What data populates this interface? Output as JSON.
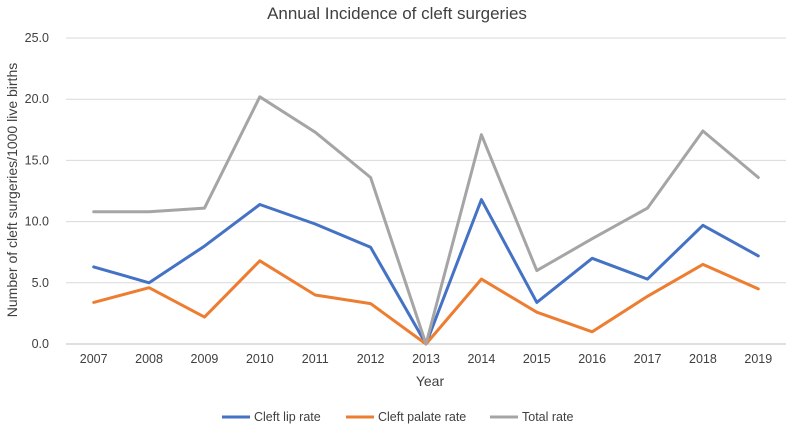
{
  "chart_data": {
    "type": "line",
    "title": "Annual Incidence of cleft surgeries",
    "xlabel": "Year",
    "ylabel": "Number of cleft surgeries/1000 live births",
    "categories": [
      "2007",
      "2008",
      "2009",
      "2010",
      "2011",
      "2012",
      "2013",
      "2014",
      "2015",
      "2016",
      "2017",
      "2018",
      "2019"
    ],
    "ylim": [
      0,
      25
    ],
    "yticks": [
      "0.0",
      "5.0",
      "10.0",
      "15.0",
      "20.0",
      "25.0"
    ],
    "grid": true,
    "legend_position": "bottom",
    "series": [
      {
        "name": "Cleft lip rate",
        "color": "#4472C4",
        "values": [
          6.3,
          5.0,
          8.0,
          11.4,
          9.8,
          7.9,
          0.0,
          11.8,
          3.4,
          7.0,
          5.3,
          9.7,
          7.2
        ]
      },
      {
        "name": "Cleft palate rate",
        "color": "#ED7D31",
        "values": [
          3.4,
          4.6,
          2.2,
          6.8,
          4.0,
          3.3,
          0.0,
          5.3,
          2.6,
          1.0,
          3.9,
          6.5,
          4.5
        ]
      },
      {
        "name": "Total rate",
        "color": "#A5A5A5",
        "values": [
          10.8,
          10.8,
          11.1,
          20.2,
          17.3,
          13.6,
          0.0,
          17.1,
          6.0,
          8.6,
          11.1,
          17.4,
          13.6
        ]
      }
    ]
  }
}
